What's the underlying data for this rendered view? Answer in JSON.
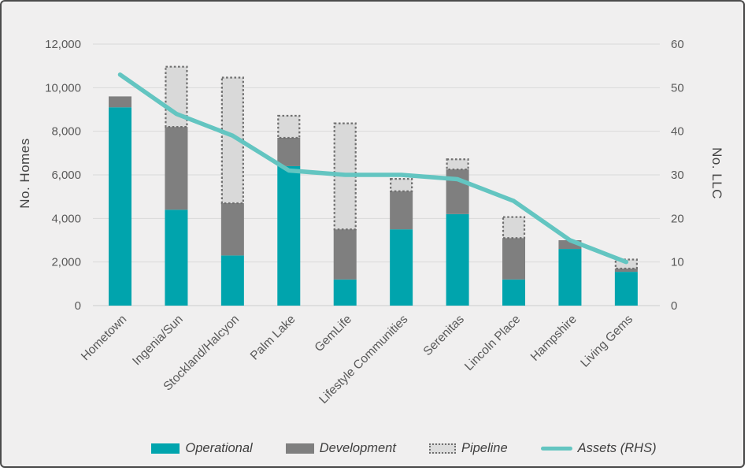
{
  "chart_data": {
    "type": "bar",
    "subtype": "stacked-bar-with-line-combo",
    "title": "",
    "categories": [
      "Hometown",
      "Ingenia/Sun",
      "Stockland/Halcyon",
      "Palm Lake",
      "GemLife",
      "Lifestyle Communities",
      "Serenitas",
      "Lincoln Place",
      "Hampshire",
      "Living Gems"
    ],
    "series": [
      {
        "name": "Operational",
        "type": "bar",
        "axis": "left",
        "color": "#00a4ad",
        "values": [
          9100,
          4400,
          2300,
          6400,
          1200,
          3500,
          4200,
          1200,
          2600,
          1550
        ]
      },
      {
        "name": "Development",
        "type": "bar",
        "axis": "left",
        "color": "#7f7f7f",
        "values": [
          500,
          3800,
          2400,
          1300,
          2300,
          1750,
          2050,
          1900,
          400,
          150
        ]
      },
      {
        "name": "Pipeline",
        "type": "bar",
        "axis": "left",
        "style": "dashed",
        "color": "#d9d9d9",
        "border_color": "#6f6f6f",
        "values": [
          0,
          2800,
          5800,
          1050,
          4900,
          600,
          500,
          1000,
          0,
          450
        ]
      },
      {
        "name": "Assets (RHS)",
        "type": "line",
        "axis": "right",
        "color": "#63c5c1",
        "values": [
          53,
          44,
          39,
          31,
          30,
          30,
          29,
          24,
          15,
          10
        ]
      }
    ],
    "stacked_totals": [
      9600,
      11000,
      10500,
      8750,
      8400,
      5850,
      6750,
      4100,
      3000,
      2150
    ],
    "left_axis": {
      "label": "No. Homes",
      "min": 0,
      "max": 12000,
      "step": 2000,
      "ticks": [
        "0",
        "2,000",
        "4,000",
        "6,000",
        "8,000",
        "10,000",
        "12,000"
      ]
    },
    "right_axis": {
      "label": "No. LLC",
      "min": 0,
      "max": 60,
      "step": 10,
      "ticks": [
        "0",
        "10",
        "20",
        "30",
        "40",
        "50",
        "60"
      ]
    },
    "grid": true,
    "legend_position": "bottom",
    "colors": {
      "background": "#f0efef",
      "gridline": "#d9d9d9",
      "baseline": "#cccccc",
      "tick_text": "#595959",
      "axis_title_text": "#454545",
      "legend_text": "#3f3f3f",
      "frame_border": "#4b4b4b"
    }
  }
}
